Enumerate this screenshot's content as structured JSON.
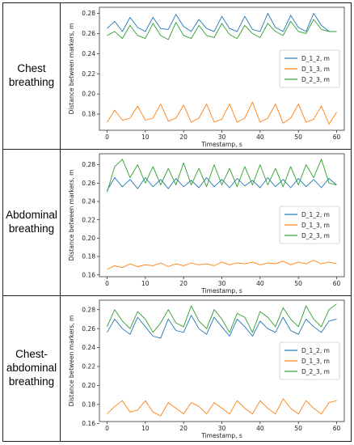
{
  "rows": [
    {
      "label": "Chest\nbreathing"
    },
    {
      "label": "Abdominal\nbreathing"
    },
    {
      "label": "Chest-\nabdominal\nbreathing"
    }
  ],
  "colors": {
    "D_1_2": "#1f77b4",
    "D_1_3": "#ff7f0e",
    "D_2_3": "#2ca02c"
  },
  "chart_data": [
    {
      "type": "line",
      "xlabel": "Timestamp, s",
      "ylabel": "Distance between markers, m",
      "xlim": [
        -2,
        62
      ],
      "ylim": [
        0.164,
        0.286
      ],
      "xticks": [
        0,
        10,
        20,
        30,
        40,
        50,
        60
      ],
      "yticks": [
        0.18,
        0.2,
        0.22,
        0.24,
        0.26,
        0.28
      ],
      "legend_position": "center-right",
      "x": [
        0,
        2,
        4,
        6,
        8,
        10,
        12,
        14,
        16,
        18,
        20,
        22,
        24,
        26,
        28,
        30,
        32,
        34,
        36,
        38,
        40,
        42,
        44,
        46,
        48,
        50,
        52,
        54,
        56,
        58,
        60
      ],
      "series": [
        {
          "name": "D_1_2, m",
          "values": [
            0.265,
            0.272,
            0.262,
            0.276,
            0.266,
            0.262,
            0.276,
            0.265,
            0.264,
            0.279,
            0.267,
            0.262,
            0.274,
            0.265,
            0.262,
            0.277,
            0.265,
            0.262,
            0.277,
            0.264,
            0.262,
            0.28,
            0.266,
            0.262,
            0.278,
            0.266,
            0.262,
            0.28,
            0.268,
            0.262,
            0.262
          ]
        },
        {
          "name": "D_1_3, m",
          "values": [
            0.172,
            0.184,
            0.174,
            0.176,
            0.188,
            0.174,
            0.176,
            0.19,
            0.173,
            0.176,
            0.189,
            0.172,
            0.176,
            0.19,
            0.172,
            0.175,
            0.19,
            0.172,
            0.176,
            0.192,
            0.172,
            0.176,
            0.19,
            0.171,
            0.176,
            0.19,
            0.172,
            0.175,
            0.188,
            0.17,
            0.182
          ]
        },
        {
          "name": "D_2_3, m",
          "values": [
            0.258,
            0.262,
            0.255,
            0.268,
            0.258,
            0.255,
            0.27,
            0.258,
            0.254,
            0.271,
            0.258,
            0.255,
            0.268,
            0.258,
            0.256,
            0.27,
            0.259,
            0.255,
            0.268,
            0.26,
            0.256,
            0.27,
            0.262,
            0.258,
            0.272,
            0.262,
            0.26,
            0.274,
            0.264,
            0.262,
            0.262
          ]
        }
      ]
    },
    {
      "type": "line",
      "xlabel": "Timestamp, s",
      "ylabel": "Distance between markers, m",
      "xlim": [
        -2,
        62
      ],
      "ylim": [
        0.158,
        0.292
      ],
      "xticks": [
        0,
        10,
        20,
        30,
        40,
        50,
        60
      ],
      "yticks": [
        0.16,
        0.18,
        0.2,
        0.22,
        0.24,
        0.26,
        0.28
      ],
      "legend_position": "center-right",
      "x": [
        0,
        2,
        4,
        6,
        8,
        10,
        12,
        14,
        16,
        18,
        20,
        22,
        24,
        26,
        28,
        30,
        32,
        34,
        36,
        38,
        40,
        42,
        44,
        46,
        48,
        50,
        52,
        54,
        56,
        58,
        60
      ],
      "series": [
        {
          "name": "D_1_2, m",
          "values": [
            0.252,
            0.266,
            0.256,
            0.264,
            0.254,
            0.266,
            0.256,
            0.264,
            0.254,
            0.265,
            0.256,
            0.263,
            0.255,
            0.266,
            0.256,
            0.264,
            0.255,
            0.265,
            0.257,
            0.263,
            0.255,
            0.266,
            0.256,
            0.264,
            0.255,
            0.265,
            0.256,
            0.264,
            0.255,
            0.265,
            0.258
          ]
        },
        {
          "name": "D_1_3, m",
          "values": [
            0.166,
            0.17,
            0.168,
            0.172,
            0.169,
            0.171,
            0.17,
            0.173,
            0.169,
            0.172,
            0.17,
            0.173,
            0.171,
            0.172,
            0.17,
            0.174,
            0.171,
            0.173,
            0.172,
            0.174,
            0.171,
            0.173,
            0.172,
            0.175,
            0.171,
            0.174,
            0.172,
            0.176,
            0.172,
            0.174,
            0.172
          ]
        },
        {
          "name": "D_2_3, m",
          "values": [
            0.25,
            0.278,
            0.286,
            0.266,
            0.28,
            0.26,
            0.278,
            0.258,
            0.276,
            0.258,
            0.282,
            0.258,
            0.276,
            0.256,
            0.28,
            0.258,
            0.276,
            0.256,
            0.278,
            0.258,
            0.28,
            0.258,
            0.276,
            0.256,
            0.278,
            0.258,
            0.28,
            0.266,
            0.286,
            0.26,
            0.258
          ]
        }
      ]
    },
    {
      "type": "line",
      "xlabel": "Timestamp, s",
      "ylabel": "Distance between markers, m",
      "xlim": [
        -2,
        62
      ],
      "ylim": [
        0.162,
        0.29
      ],
      "xticks": [
        0,
        10,
        20,
        30,
        40,
        50,
        60
      ],
      "yticks": [
        0.16,
        0.18,
        0.2,
        0.22,
        0.24,
        0.26,
        0.28
      ],
      "legend_position": "center-right",
      "x": [
        0,
        2,
        4,
        6,
        8,
        10,
        12,
        14,
        16,
        18,
        20,
        22,
        24,
        26,
        28,
        30,
        32,
        34,
        36,
        38,
        40,
        42,
        44,
        46,
        48,
        50,
        52,
        54,
        56,
        58,
        60
      ],
      "series": [
        {
          "name": "D_1_2, m",
          "values": [
            0.256,
            0.27,
            0.26,
            0.254,
            0.272,
            0.262,
            0.252,
            0.25,
            0.27,
            0.258,
            0.256,
            0.274,
            0.26,
            0.254,
            0.272,
            0.262,
            0.252,
            0.27,
            0.262,
            0.252,
            0.268,
            0.26,
            0.256,
            0.272,
            0.258,
            0.254,
            0.27,
            0.262,
            0.256,
            0.268,
            0.27
          ]
        },
        {
          "name": "D_1_3, m",
          "values": [
            0.17,
            0.178,
            0.184,
            0.172,
            0.174,
            0.184,
            0.172,
            0.168,
            0.182,
            0.176,
            0.17,
            0.182,
            0.178,
            0.17,
            0.182,
            0.176,
            0.17,
            0.184,
            0.176,
            0.17,
            0.184,
            0.176,
            0.17,
            0.186,
            0.176,
            0.17,
            0.184,
            0.176,
            0.17,
            0.182,
            0.184
          ]
        },
        {
          "name": "D_2_3, m",
          "values": [
            0.262,
            0.28,
            0.268,
            0.26,
            0.278,
            0.27,
            0.256,
            0.266,
            0.28,
            0.266,
            0.262,
            0.284,
            0.268,
            0.26,
            0.28,
            0.27,
            0.256,
            0.276,
            0.272,
            0.256,
            0.278,
            0.272,
            0.262,
            0.282,
            0.27,
            0.262,
            0.284,
            0.27,
            0.262,
            0.28,
            0.286
          ]
        }
      ]
    }
  ]
}
